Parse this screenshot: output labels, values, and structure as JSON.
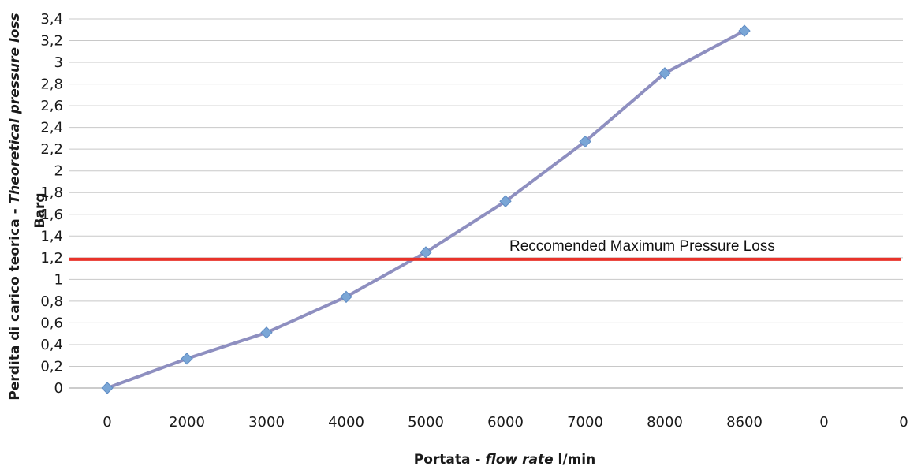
{
  "chart_data": {
    "type": "line",
    "categories": [
      "0",
      "2000",
      "3000",
      "4000",
      "5000",
      "6000",
      "7000",
      "8000",
      "8600",
      "0",
      "0"
    ],
    "series": [
      {
        "values": [
          0,
          0.27,
          0.51,
          0.84,
          1.25,
          1.72,
          2.27,
          2.9,
          3.29,
          null,
          null
        ],
        "color": "#8e8fc0",
        "marker_color": "#7aa6d6",
        "marker": "diamond"
      }
    ],
    "reference_line": {
      "label": "Reccomended Maximum Pressure Loss",
      "value": 1.2,
      "color": "#e8322a"
    },
    "y_ticks": [
      "0",
      "0,2",
      "0,4",
      "0,6",
      "0,8",
      "1",
      "1,2",
      "1,4",
      "1,6",
      "1,8",
      "2",
      "2,2",
      "2,4",
      "2,6",
      "2,8",
      "3",
      "3,2",
      "3,4"
    ],
    "ylim": [
      0,
      3.4
    ],
    "xlabel": {
      "part1": "Portata - ",
      "part2": "flow rate",
      "part3": "  l/min"
    },
    "ylabel": {
      "line1_part1": "Perdita di carico teorica - ",
      "line1_part2": "Theoretical pressure loss",
      "line2": "Barg"
    },
    "grid": true,
    "legend": "none"
  }
}
